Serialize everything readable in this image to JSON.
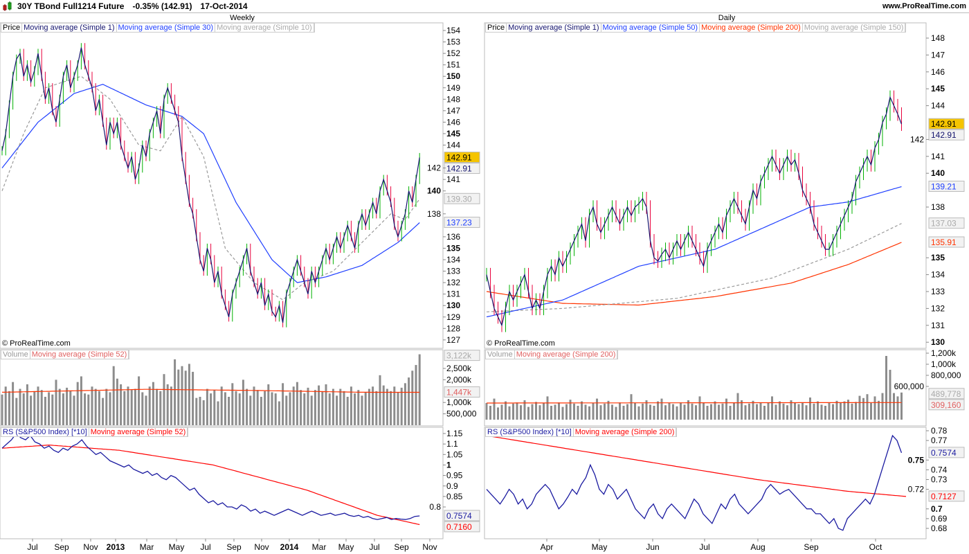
{
  "header": {
    "instrument": "30Y TBond Full1214 Future",
    "change": "-0.35% (142.91)",
    "date": "17-Oct-2014",
    "site": "www.ProRealTime.com"
  },
  "colors": {
    "up": "#00b000",
    "down": "#e8003c",
    "close_line": "#14146e",
    "ma_blue": "#1f3fff",
    "ma_red": "#ff3300",
    "ma_gray": "#999999",
    "volume": "#8c8c8c",
    "rs": "#1a1aa0",
    "rs_ma": "#ff0000",
    "last_price_bg": "#f5c400"
  },
  "copyright": "© ProRealTime.com",
  "weekly": {
    "title": "Weekly",
    "legend": [
      "Price",
      "Moving average (Simple 1)",
      "Moving average (Simple 30)",
      "Moving average (Simple 10)"
    ],
    "vol_legend": [
      "Volume",
      "Moving average (Simple 52)"
    ],
    "rs_legend": [
      "RS (S&P500 Index) [*10]",
      "Moving average (Simple 52)"
    ],
    "xlabels": [
      "Jul",
      "Sep",
      "Nov",
      "2013",
      "Mar",
      "May",
      "Jul",
      "Sep",
      "Nov",
      "2014",
      "Mar",
      "May",
      "Jul",
      "Sep",
      "Nov"
    ],
    "price_ticks": [
      "154",
      "153",
      "152",
      "151",
      "150",
      "149",
      "148",
      "147",
      "146",
      "145",
      "144",
      "142",
      "141",
      "140",
      "138",
      "136",
      "135",
      "134",
      "133",
      "132",
      "131",
      "130",
      "129",
      "128",
      "127"
    ],
    "price_tags": {
      "last": "142.91",
      "ma1": "142.91",
      "ma10": "139.30",
      "ma30": "137.23"
    },
    "vol_ticks": [
      "2,500k",
      "2,000k",
      "1,000k",
      "500,000"
    ],
    "vol_tags": {
      "last": "3,122k",
      "ma": "1,447k"
    },
    "rs_ticks": [
      "1.15",
      "1.1",
      "1.05",
      "1",
      "0.95",
      "0.9",
      "0.85",
      "0.8"
    ],
    "rs_tags": {
      "rs": "0.7574",
      "ma": "0.7160"
    }
  },
  "daily": {
    "title": "Daily",
    "legend": [
      "Price",
      "Moving average (Simple 1)",
      "Moving average (Simple 50)",
      "Moving average (Simple 200)",
      "Moving average (Simple 150)"
    ],
    "vol_legend": [
      "Volume",
      "Moving average (Simple 200)"
    ],
    "rs_legend": [
      "RS (S&P500 Index) [*10]",
      "Moving average (Simple 200)"
    ],
    "xlabels": [
      "Apr",
      "May",
      "Jun",
      "Jul",
      "Aug",
      "Sep",
      "Oct"
    ],
    "price_ticks": [
      "148",
      "147",
      "146",
      "145",
      "144",
      "142",
      "141",
      "140",
      "138",
      "135",
      "134",
      "133",
      "132",
      "131",
      "130"
    ],
    "price_tags": {
      "last": "142.91",
      "ma1": "142.91",
      "ma50": "139.21",
      "ma150": "137.03",
      "ma200": "135.91"
    },
    "vol_ticks": [
      "1,200k",
      "1,000k",
      "800,000",
      "600,000"
    ],
    "vol_tags": {
      "last": "489,778",
      "ma": "309,160"
    },
    "rs_ticks": [
      "0.78",
      "0.77",
      "0.75",
      "0.74",
      "0.73",
      "0.72",
      "0.7",
      "0.69",
      "0.68"
    ],
    "rs_tags": {
      "rs": "0.7574",
      "ma": "0.7127"
    }
  },
  "chart_data": [
    {
      "type": "line",
      "title": "Weekly",
      "ylim": [
        126.5,
        154.5
      ],
      "close": [
        143.5,
        145,
        147.5,
        150,
        151.5,
        152,
        150,
        151,
        149.5,
        150.5,
        152,
        150,
        148,
        149,
        147,
        146,
        148,
        150,
        151,
        149,
        150,
        151,
        152.5,
        151,
        150,
        149,
        147,
        148,
        146,
        144,
        146,
        145,
        146,
        144,
        143,
        142,
        143,
        141,
        142,
        144,
        143,
        145,
        146,
        147,
        145,
        148,
        149,
        148,
        147,
        146,
        143,
        141,
        139,
        138,
        136,
        134,
        133,
        135,
        134,
        132,
        133,
        131,
        130,
        129,
        131,
        132,
        133,
        134,
        135,
        133,
        132,
        131,
        132,
        130,
        131,
        129.5,
        129,
        130,
        128.5,
        131,
        132,
        133,
        134,
        133,
        132,
        131,
        133,
        132,
        133,
        134,
        135,
        134,
        135,
        136,
        135,
        136,
        137,
        136,
        135,
        137,
        138,
        137,
        138,
        139,
        138,
        140,
        141,
        140,
        139,
        137,
        136,
        137,
        138,
        140,
        139,
        141,
        142.91
      ],
      "ma30": [
        [
          0,
          142
        ],
        [
          10,
          146
        ],
        [
          20,
          148.5
        ],
        [
          28,
          149.3
        ],
        [
          40,
          147.5
        ],
        [
          50,
          146.5
        ],
        [
          56,
          145
        ],
        [
          65,
          139
        ],
        [
          75,
          134
        ],
        [
          82,
          132
        ],
        [
          90,
          132.5
        ],
        [
          100,
          133.5
        ],
        [
          110,
          135.5
        ],
        [
          116,
          137.23
        ]
      ],
      "ma10": [
        [
          0,
          140
        ],
        [
          6,
          145
        ],
        [
          12,
          149
        ],
        [
          22,
          150
        ],
        [
          30,
          148
        ],
        [
          38,
          144
        ],
        [
          44,
          143.5
        ],
        [
          50,
          146.5
        ],
        [
          56,
          143
        ],
        [
          62,
          135
        ],
        [
          70,
          132
        ],
        [
          78,
          130.5
        ],
        [
          84,
          132
        ],
        [
          92,
          133
        ],
        [
          100,
          135.5
        ],
        [
          108,
          138
        ],
        [
          112,
          137.5
        ],
        [
          116,
          139.3
        ]
      ],
      "volume_k": [
        1350,
        1700,
        1500,
        1900,
        1200,
        1600,
        1400,
        1800,
        1300,
        1500,
        1700,
        1550,
        1250,
        1450,
        1350,
        2000,
        1600,
        1400,
        1650,
        1500,
        1300,
        1900,
        2150,
        1400,
        1350,
        1700,
        1600,
        1500,
        1200,
        1600,
        1450,
        2600,
        2050,
        1800,
        1500,
        1700,
        1550,
        1600,
        2150,
        1450,
        1300,
        1700,
        1900,
        1600,
        1500,
        2250,
        1800,
        1700,
        2900,
        2450,
        2600,
        2400,
        2700,
        2350,
        1200,
        1250,
        1100,
        1600,
        1400,
        1550,
        1050,
        1700,
        1450,
        1250,
        1850,
        1500,
        1400,
        2000,
        1600,
        1300,
        1700,
        1550,
        1250,
        1500,
        1800,
        1450,
        1400,
        1050,
        1850,
        1300,
        1450,
        1700,
        1900,
        1550,
        1400,
        1650,
        1300,
        1550,
        1750,
        1500,
        1800,
        1400,
        1600,
        1300,
        1600,
        1500,
        1250,
        1700,
        1400,
        1550,
        1300,
        1450,
        1600,
        1700,
        1500,
        2200,
        1750,
        1600,
        1500,
        1700,
        1450,
        1650,
        1850,
        2100,
        2400,
        2650,
        3122
      ],
      "volume_ma_k": [
        [
          0,
          1450
        ],
        [
          40,
          1580
        ],
        [
          70,
          1530
        ],
        [
          100,
          1450
        ],
        [
          116,
          1447
        ]
      ],
      "rs": [
        1.08,
        1.1,
        1.12,
        1.15,
        1.13,
        1.12,
        1.14,
        1.11,
        1.1,
        1.08,
        1.09,
        1.07,
        1.06,
        1.08,
        1.07,
        1.09,
        1.1,
        1.12,
        1.09,
        1.07,
        1.05,
        1.06,
        1.04,
        1.02,
        1.01,
        1.0,
        0.99,
        1.0,
        0.98,
        0.97,
        0.96,
        0.97,
        0.95,
        0.96,
        0.94,
        0.93,
        0.95,
        0.94,
        0.92,
        0.9,
        0.88,
        0.89,
        0.86,
        0.84,
        0.82,
        0.83,
        0.81,
        0.82,
        0.8,
        0.8,
        0.79,
        0.81,
        0.8,
        0.78,
        0.79,
        0.77,
        0.78,
        0.77,
        0.76,
        0.77,
        0.78,
        0.79,
        0.78,
        0.77,
        0.76,
        0.77,
        0.78,
        0.77,
        0.76,
        0.765,
        0.77,
        0.76,
        0.765,
        0.77,
        0.76,
        0.755,
        0.76,
        0.75,
        0.755,
        0.745,
        0.74,
        0.745,
        0.75,
        0.74,
        0.745,
        0.742,
        0.74,
        0.745,
        0.755,
        0.7574
      ],
      "rs_ma": [
        [
          0,
          1.08
        ],
        [
          10,
          1.095
        ],
        [
          25,
          1.07
        ],
        [
          45,
          1.0
        ],
        [
          65,
          0.88
        ],
        [
          80,
          0.76
        ],
        [
          89,
          0.716
        ]
      ]
    },
    {
      "type": "line",
      "title": "Daily",
      "ylim": [
        129.8,
        148.5
      ],
      "close": [
        134,
        133,
        132,
        131.5,
        131,
        132,
        133,
        132.5,
        133,
        133.5,
        134,
        133,
        132,
        132.5,
        132,
        133,
        134,
        134.5,
        134,
        135,
        134.5,
        135,
        135.5,
        136,
        136.5,
        137,
        136,
        137.5,
        138,
        137,
        136.5,
        137,
        137.5,
        138,
        137.5,
        137,
        137.5,
        138,
        137.5,
        138,
        138.2,
        138.5,
        138,
        136,
        135,
        134.8,
        135.2,
        135.5,
        135,
        135.5,
        136,
        135.5,
        136,
        136.5,
        136,
        135.5,
        135,
        134.5,
        135.5,
        136,
        136.5,
        137,
        136.5,
        137.5,
        138,
        138.5,
        138,
        137.5,
        137,
        138,
        139,
        138.5,
        139.5,
        140,
        140.5,
        141,
        140.5,
        140,
        140.5,
        141,
        140.5,
        140.8,
        140,
        139,
        138.5,
        138,
        137,
        136.5,
        136,
        135.5,
        135.5,
        136,
        136.5,
        137,
        137.5,
        138,
        138.5,
        139.5,
        140,
        140.5,
        141,
        140.5,
        141.5,
        142,
        143,
        143.5,
        144.5,
        144,
        143.5,
        142.91
      ],
      "ma50": [
        [
          0,
          131.5
        ],
        [
          20,
          132.5
        ],
        [
          40,
          134.5
        ],
        [
          60,
          135.5
        ],
        [
          75,
          137
        ],
        [
          85,
          138
        ],
        [
          95,
          138.3
        ],
        [
          109,
          139.21
        ]
      ],
      "ma150": [
        [
          0,
          131.8
        ],
        [
          20,
          132
        ],
        [
          50,
          132.6
        ],
        [
          75,
          133.8
        ],
        [
          95,
          135.5
        ],
        [
          109,
          137.03
        ]
      ],
      "ma200": [
        [
          0,
          133
        ],
        [
          20,
          132.3
        ],
        [
          40,
          132.2
        ],
        [
          60,
          132.7
        ],
        [
          80,
          133.5
        ],
        [
          95,
          134.6
        ],
        [
          109,
          135.91
        ]
      ],
      "volume_k": [
        300,
        250,
        380,
        220,
        270,
        330,
        240,
        290,
        310,
        260,
        350,
        230,
        280,
        320,
        260,
        300,
        420,
        250,
        270,
        310,
        230,
        280,
        360,
        290,
        250,
        330,
        270,
        240,
        300,
        380,
        260,
        290,
        340,
        270,
        230,
        310,
        250,
        280,
        460,
        300,
        240,
        290,
        350,
        270,
        250,
        330,
        380,
        260,
        300,
        280,
        240,
        310,
        270,
        350,
        290,
        260,
        420,
        300,
        250,
        280,
        330,
        270,
        290,
        380,
        250,
        300,
        480,
        350,
        260,
        290,
        340,
        280,
        310,
        250,
        300,
        420,
        270,
        330,
        290,
        260,
        350,
        300,
        280,
        310,
        260,
        400,
        290,
        330,
        270,
        250,
        300,
        280,
        340,
        300,
        330,
        360,
        290,
        320,
        430,
        390,
        460,
        300,
        420,
        340,
        480,
        1150,
        900,
        480,
        420,
        489.778
      ],
      "volume_ma_k": [
        [
          0,
          300
        ],
        [
          109,
          309.16
        ]
      ],
      "rs": [
        0.72,
        0.715,
        0.71,
        0.705,
        0.712,
        0.72,
        0.715,
        0.705,
        0.71,
        0.7,
        0.705,
        0.715,
        0.72,
        0.725,
        0.72,
        0.71,
        0.7,
        0.705,
        0.712,
        0.72,
        0.715,
        0.725,
        0.732,
        0.745,
        0.735,
        0.72,
        0.715,
        0.725,
        0.72,
        0.71,
        0.715,
        0.72,
        0.71,
        0.7,
        0.695,
        0.69,
        0.7,
        0.705,
        0.695,
        0.69,
        0.7,
        0.705,
        0.7,
        0.695,
        0.69,
        0.7,
        0.71,
        0.705,
        0.695,
        0.69,
        0.685,
        0.695,
        0.705,
        0.7,
        0.71,
        0.715,
        0.705,
        0.7,
        0.695,
        0.7,
        0.705,
        0.71,
        0.72,
        0.725,
        0.72,
        0.715,
        0.718,
        0.72,
        0.715,
        0.71,
        0.705,
        0.7,
        0.7,
        0.695,
        0.695,
        0.69,
        0.685,
        0.69,
        0.68,
        0.678,
        0.69,
        0.695,
        0.7,
        0.705,
        0.71,
        0.705,
        0.715,
        0.73,
        0.745,
        0.76,
        0.775,
        0.77,
        0.7574
      ],
      "rs_ma": [
        [
          0,
          0.775
        ],
        [
          20,
          0.76
        ],
        [
          40,
          0.745
        ],
        [
          60,
          0.73
        ],
        [
          80,
          0.718
        ],
        [
          93,
          0.7127
        ]
      ]
    }
  ]
}
